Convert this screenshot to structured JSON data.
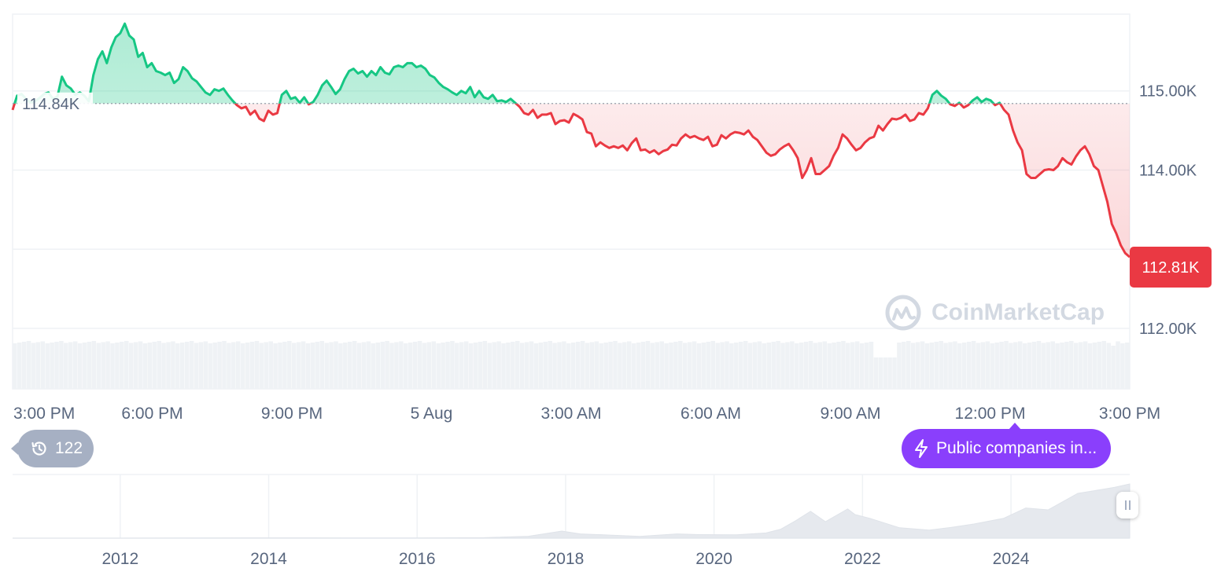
{
  "chart_data": [
    {
      "type": "line",
      "title": "",
      "xlabel": "",
      "ylabel": "",
      "x_tick_labels": [
        "3:00 PM",
        "6:00 PM",
        "9:00 PM",
        "5 Aug",
        "3:00 AM",
        "6:00 AM",
        "9:00 AM",
        "12:00 PM",
        "3:00 PM"
      ],
      "y_tick_labels": [
        "115.00K",
        "114.00K",
        "112.00K"
      ],
      "ylim": [
        111950,
        115950
      ],
      "baseline": 114840,
      "baseline_label": "114.84K",
      "last_price": 112810,
      "last_price_label": "112.81K",
      "grid": true,
      "x_range_hours": [
        0,
        24
      ],
      "series": [
        {
          "values": [
            114760,
            114940,
            114960,
            114900,
            114850,
            114870,
            114910,
            114960,
            114980,
            114900,
            114930,
            115180,
            115070,
            115030,
            114950,
            114980,
            114940,
            114870,
            115200,
            115400,
            115500,
            115350,
            115550,
            115680,
            115730,
            115850,
            115700,
            115650,
            115430,
            115480,
            115300,
            115350,
            115250,
            115230,
            115200,
            115230,
            115100,
            115150,
            115300,
            115250,
            115160,
            115120,
            115050,
            114980,
            114950,
            115020,
            115000,
            115030,
            114950,
            114880,
            114820,
            114780,
            114800,
            114700,
            114750,
            114650,
            114620,
            114750,
            114700,
            114720,
            114950,
            115000,
            114900,
            114920,
            114850,
            114920,
            114830,
            114860,
            114950,
            115070,
            115130,
            115050,
            114960,
            115020,
            115150,
            115250,
            115280,
            115220,
            115250,
            115180,
            115250,
            115200,
            115300,
            115230,
            115210,
            115300,
            115320,
            115300,
            115350,
            115350,
            115300,
            115320,
            115280,
            115200,
            115170,
            115100,
            115050,
            115020,
            114980,
            114950,
            115000,
            114970,
            115050,
            114920,
            115000,
            114920,
            114900,
            114950,
            114870,
            114880,
            114860,
            114900,
            114850,
            114800,
            114720,
            114700,
            114760,
            114660,
            114700,
            114700,
            114720,
            114580,
            114620,
            114630,
            114600,
            114710,
            114680,
            114640,
            114480,
            114460,
            114300,
            114350,
            114310,
            114280,
            114300,
            114280,
            114310,
            114250,
            114340,
            114400,
            114250,
            114260,
            114220,
            114250,
            114200,
            114240,
            114260,
            114320,
            114310,
            114400,
            114450,
            114410,
            114430,
            114400,
            114380,
            114420,
            114300,
            114320,
            114440,
            114400,
            114450,
            114480,
            114470,
            114450,
            114500,
            114420,
            114380,
            114300,
            114220,
            114180,
            114200,
            114260,
            114300,
            114330,
            114250,
            114150,
            113900,
            114000,
            114150,
            113950,
            113950,
            114000,
            114050,
            114180,
            114280,
            114450,
            114400,
            114320,
            114250,
            114280,
            114350,
            114400,
            114420,
            114560,
            114500,
            114580,
            114650,
            114640,
            114660,
            114700,
            114620,
            114640,
            114720,
            114700,
            114780,
            114950,
            115000,
            114940,
            114900,
            114830,
            114810,
            114850,
            114790,
            114820,
            114880,
            114920,
            114860,
            114900,
            114880,
            114820,
            114850,
            114760,
            114700,
            114500,
            114350,
            114250,
            113950,
            113900,
            113900,
            113950,
            114000,
            114010,
            114000,
            114050,
            114150,
            114100,
            114070,
            114170,
            114250,
            114300,
            114200,
            114050,
            114000,
            113800,
            113600,
            113320,
            113200,
            113050,
            112950,
            112900
          ]
        }
      ]
    },
    {
      "type": "area",
      "title": "",
      "x_tick_labels": [
        "2012",
        "2014",
        "2016",
        "2018",
        "2020",
        "2022",
        "2024"
      ],
      "x_range_years": [
        2010.55,
        2025.6
      ],
      "ylim": [
        0,
        125000
      ],
      "series": [
        {
          "x": [
            2010.55,
            2012.0,
            2013.0,
            2014.0,
            2015.0,
            2016.0,
            2016.9,
            2017.5,
            2017.95,
            2018.2,
            2018.6,
            2019.0,
            2019.5,
            2019.8,
            2020.3,
            2020.7,
            2020.9,
            2021.1,
            2021.3,
            2021.5,
            2021.8,
            2021.9,
            2022.1,
            2022.5,
            2022.9,
            2023.2,
            2023.5,
            2023.9,
            2024.2,
            2024.5,
            2024.9,
            2025.1,
            2025.4,
            2025.6
          ],
          "y": [
            0,
            10,
            500,
            600,
            300,
            430,
            1000,
            4000,
            15000,
            9000,
            6500,
            3800,
            9000,
            7500,
            7000,
            11000,
            19000,
            37000,
            57000,
            35000,
            62000,
            50000,
            42000,
            22000,
            17000,
            23000,
            30000,
            42000,
            64000,
            60000,
            95000,
            100000,
            108000,
            115000
          ]
        }
      ]
    }
  ],
  "badges": {
    "history_count": "122",
    "news_text": "Public companies in..."
  },
  "watermark_text": "CoinMarketCap",
  "colors": {
    "up": "#16c784",
    "down": "#ea3943",
    "up_fill": "#16c784",
    "down_fill": "#ea3943",
    "grid": "#eff2f5",
    "axis_text": "#58667e",
    "price_tag_bg": "#ea3943",
    "news_bg": "#8a3ffc",
    "history_bg": "#a6b0c3",
    "watermark": "#d3d9e2",
    "overview_fill": "#eff2f5"
  }
}
